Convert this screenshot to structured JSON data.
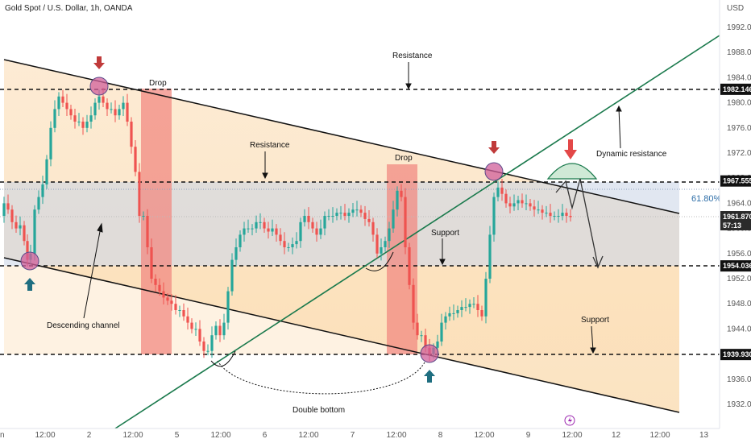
{
  "header": {
    "title": "Gold Spot / U.S. Dollar, 1h, OANDA"
  },
  "chart_data": {
    "type": "candlestick",
    "symbol": "Gold Spot / U.S. Dollar, 1h, OANDA",
    "currency": "USD",
    "ylim": [
      1929.5,
      1996.5
    ],
    "y_ticks": [
      1932,
      1936,
      1940,
      1944,
      1948,
      1952,
      1956,
      1960,
      1964,
      1968,
      1972,
      1976,
      1980,
      1984,
      1988,
      1992
    ],
    "x_ticks": [
      "12:00",
      "2",
      "12:00",
      "5",
      "12:00",
      "6",
      "12:00",
      "7",
      "12:00",
      "8",
      "12:00",
      "9",
      "12:00",
      "12",
      "12:00",
      "13"
    ],
    "x_tick_first": "n",
    "colors": {
      "up": "#26a69a",
      "down": "#ef5350",
      "channel": "#111111",
      "trend": "#1b7a4d",
      "fib": "#2f6fa8",
      "drop": "#f28a82"
    },
    "price_labels": [
      {
        "label": "1982.146",
        "price": 1982.146
      },
      {
        "label": "1967.555",
        "price": 1967.555
      },
      {
        "label": "1961.870",
        "price": 1961.87,
        "sub": "57:13"
      },
      {
        "label": "1954.036",
        "price": 1954.036
      },
      {
        "label": "1939.930",
        "price": 1939.93
      }
    ],
    "fib_level": "61.80%",
    "annotations": [
      "Resistance",
      "Drop",
      "Resistance",
      "Drop",
      "Support",
      "Dynamic resistance",
      "Descending channel",
      "Support",
      "Double bottom"
    ],
    "close_points": [
      [
        0,
        1962
      ],
      [
        5,
        1964
      ],
      [
        10,
        1963
      ],
      [
        15,
        1961
      ],
      [
        20,
        1960
      ],
      [
        25,
        1960.5
      ],
      [
        30,
        1958
      ],
      [
        34,
        1955
      ],
      [
        38,
        1956
      ],
      [
        43,
        1963
      ],
      [
        48,
        1965
      ],
      [
        53,
        1967
      ],
      [
        58,
        1971
      ],
      [
        63,
        1976
      ],
      [
        68,
        1979
      ],
      [
        73,
        1981
      ],
      [
        78,
        1980
      ],
      [
        83,
        1979
      ],
      [
        88,
        1978
      ],
      [
        93,
        1977
      ],
      [
        98,
        1977
      ],
      [
        103,
        1976
      ],
      [
        108,
        1977
      ],
      [
        113,
        1978
      ],
      [
        118,
        1980
      ],
      [
        123,
        1981
      ],
      [
        128,
        1980
      ],
      [
        133,
        1979
      ],
      [
        138,
        1979
      ],
      [
        143,
        1978
      ],
      [
        148,
        1979
      ],
      [
        153,
        1980
      ],
      [
        158,
        1977
      ],
      [
        163,
        1973
      ],
      [
        168,
        1969
      ],
      [
        173,
        1962
      ],
      [
        178,
        1962
      ],
      [
        183,
        1957
      ],
      [
        188,
        1952
      ],
      [
        193,
        1951
      ],
      [
        198,
        1950
      ],
      [
        203,
        1949
      ],
      [
        208,
        1948.5
      ],
      [
        213,
        1948
      ],
      [
        218,
        1947
      ],
      [
        223,
        1947
      ],
      [
        228,
        1946
      ],
      [
        233,
        1945
      ],
      [
        238,
        1944
      ],
      [
        243,
        1944
      ],
      [
        248,
        1942
      ],
      [
        253,
        1940.5
      ],
      [
        258,
        1940.5
      ],
      [
        263,
        1943
      ],
      [
        268,
        1944.5
      ],
      [
        273,
        1943
      ],
      [
        278,
        1945
      ],
      [
        283,
        1950
      ],
      [
        288,
        1955
      ],
      [
        293,
        1957
      ],
      [
        298,
        1959
      ],
      [
        303,
        1960
      ],
      [
        308,
        1960
      ],
      [
        313,
        1960
      ],
      [
        318,
        1961
      ],
      [
        323,
        1961
      ],
      [
        328,
        1960
      ],
      [
        333,
        1959.5
      ],
      [
        338,
        1960
      ],
      [
        343,
        1959
      ],
      [
        348,
        1958
      ],
      [
        353,
        1957
      ],
      [
        358,
        1957
      ],
      [
        363,
        1957.5
      ],
      [
        368,
        1958
      ],
      [
        373,
        1961
      ],
      [
        378,
        1962
      ],
      [
        383,
        1961
      ],
      [
        388,
        1960
      ],
      [
        393,
        1959
      ],
      [
        398,
        1960
      ],
      [
        403,
        1962
      ],
      [
        408,
        1962
      ],
      [
        413,
        1962
      ],
      [
        418,
        1962.5
      ],
      [
        423,
        1962.5
      ],
      [
        428,
        1962
      ],
      [
        433,
        1962.5
      ],
      [
        438,
        1963
      ],
      [
        443,
        1963
      ],
      [
        448,
        1962.5
      ],
      [
        453,
        1961.5
      ],
      [
        458,
        1961
      ],
      [
        463,
        1959
      ],
      [
        468,
        1956
      ],
      [
        473,
        1957
      ],
      [
        478,
        1958
      ],
      [
        483,
        1960
      ],
      [
        488,
        1963
      ],
      [
        493,
        1966
      ],
      [
        498,
        1965
      ],
      [
        503,
        1957
      ],
      [
        508,
        1951
      ],
      [
        513,
        1945
      ],
      [
        518,
        1943
      ],
      [
        523,
        1943
      ],
      [
        528,
        1941
      ],
      [
        533,
        1940
      ],
      [
        538,
        1941
      ],
      [
        543,
        1942
      ],
      [
        548,
        1945
      ],
      [
        553,
        1946
      ],
      [
        558,
        1946.5
      ],
      [
        563,
        1946.5
      ],
      [
        568,
        1947
      ],
      [
        573,
        1947.5
      ],
      [
        578,
        1947.5
      ],
      [
        583,
        1948
      ],
      [
        588,
        1948
      ],
      [
        593,
        1947
      ],
      [
        598,
        1946
      ],
      [
        603,
        1952
      ],
      [
        608,
        1959
      ],
      [
        613,
        1965
      ],
      [
        618,
        1966.5
      ],
      [
        623,
        1965.5
      ],
      [
        628,
        1964
      ],
      [
        633,
        1963.5
      ],
      [
        638,
        1964
      ],
      [
        643,
        1964.5
      ],
      [
        648,
        1964
      ],
      [
        653,
        1964
      ],
      [
        658,
        1963.5
      ],
      [
        663,
        1963
      ],
      [
        668,
        1963
      ],
      [
        673,
        1962.5
      ],
      [
        678,
        1962.5
      ],
      [
        683,
        1962
      ],
      [
        688,
        1962
      ],
      [
        693,
        1962
      ],
      [
        698,
        1962.5
      ],
      [
        703,
        1962
      ],
      [
        708,
        1961.8
      ]
    ]
  }
}
